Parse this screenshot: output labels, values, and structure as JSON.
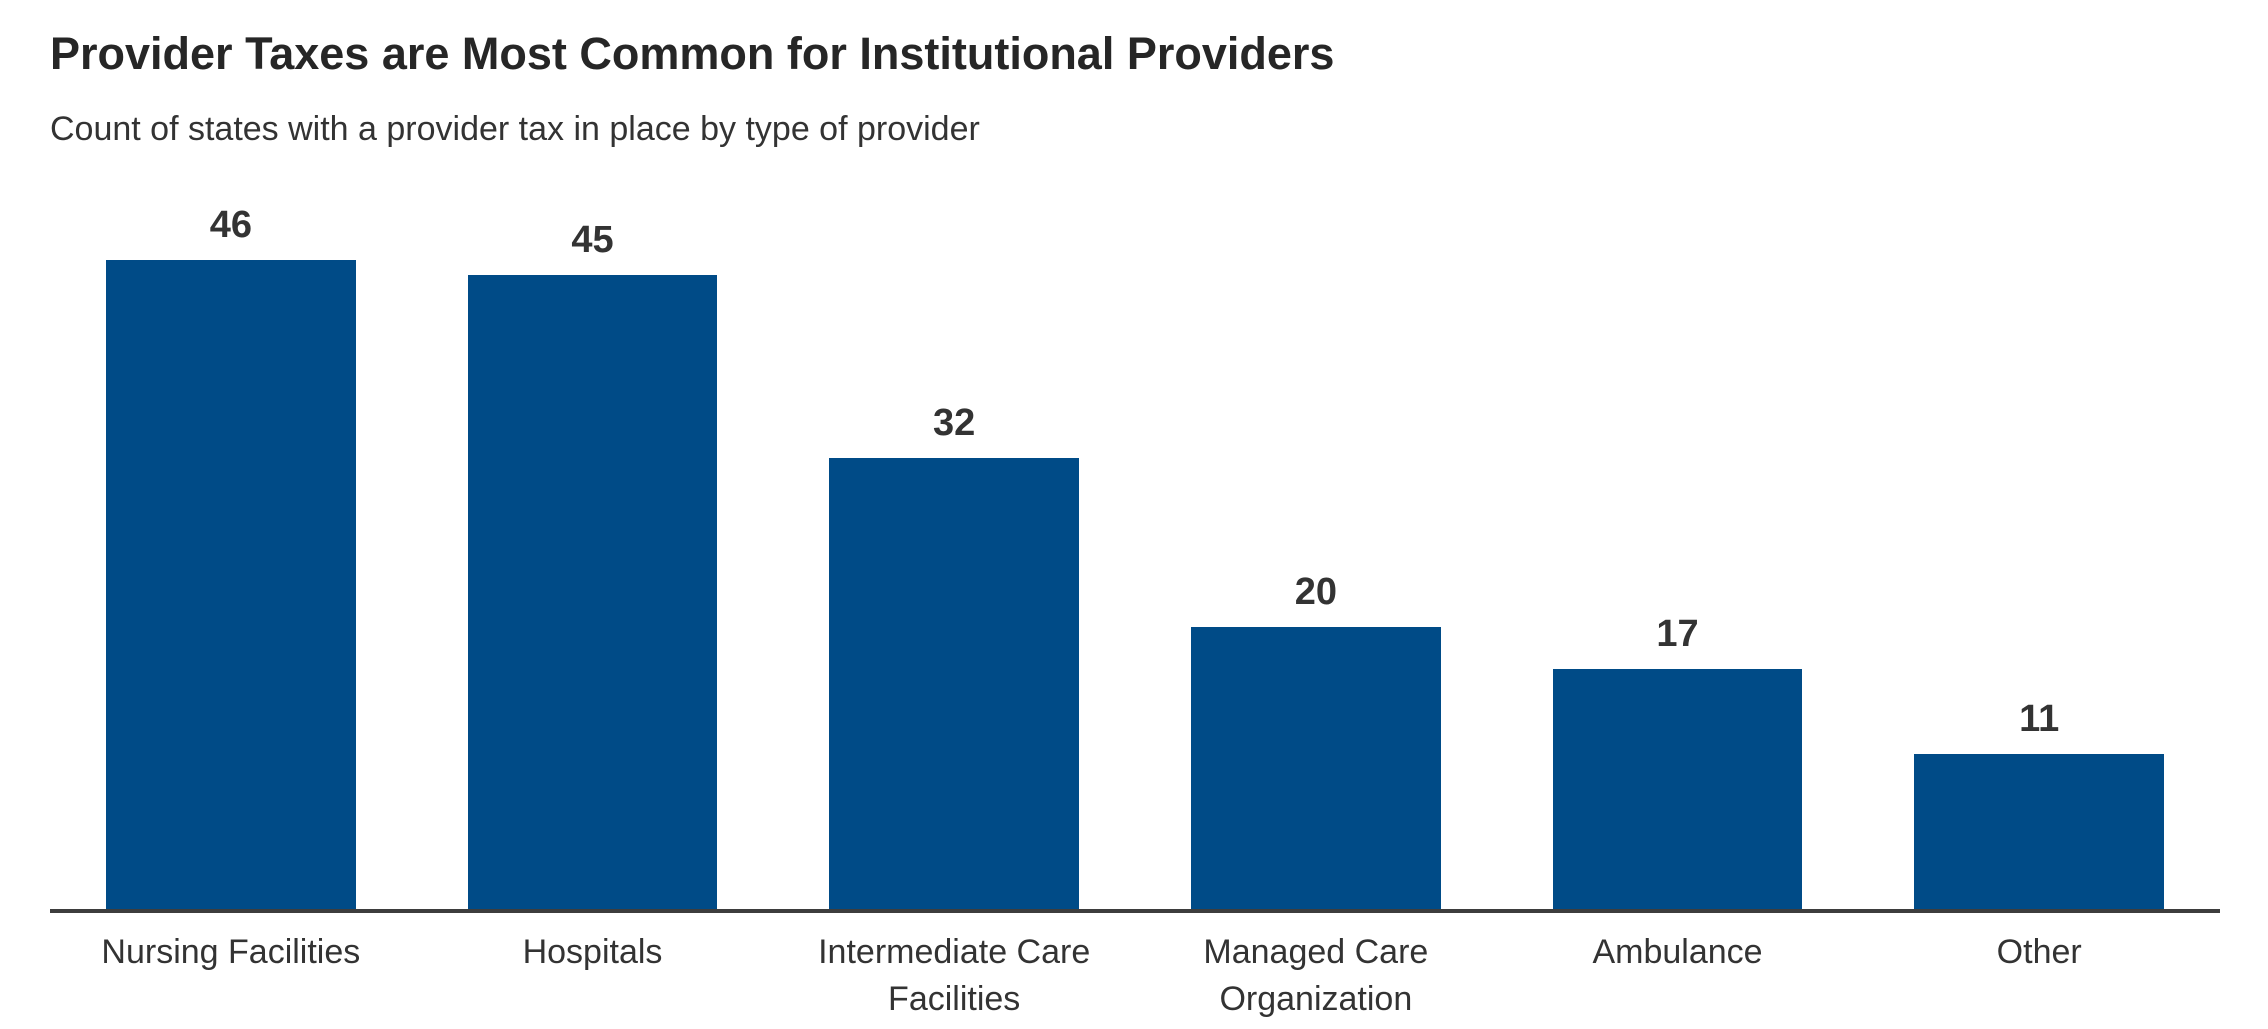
{
  "chart_data": {
    "type": "bar",
    "title": "Provider Taxes are Most Common for Institutional Providers",
    "subtitle": "Count of states with a provider tax in place by type of provider",
    "categories": [
      "Nursing Facilities",
      "Hospitals",
      "Intermediate Care Facilities",
      "Managed Care Organization",
      "Ambulance",
      "Other"
    ],
    "values": [
      46,
      45,
      32,
      20,
      17,
      11
    ],
    "xlabel": "",
    "ylabel": "",
    "ylim": [
      0,
      50
    ],
    "grid": false,
    "legend": "none",
    "value_labels_shown": true,
    "bar_color": "#004B87",
    "axis_line_color": "#3d3d3d",
    "title_color": "#262626",
    "text_color": "#333333"
  }
}
